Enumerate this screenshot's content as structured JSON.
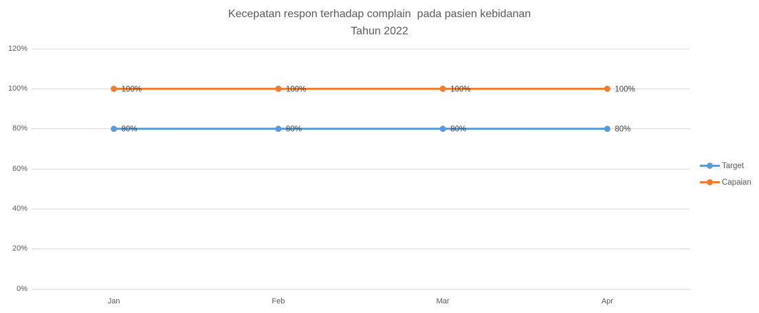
{
  "chart_data": {
    "type": "line",
    "title": "Kecepatan respon terhadap complain  pada pasien kebidanan",
    "subtitle": "Tahun 2022",
    "categories": [
      "Jan",
      "Feb",
      "Mar",
      "Apr"
    ],
    "series": [
      {
        "name": "Target",
        "values": [
          80,
          80,
          80,
          80
        ],
        "point_labels": [
          "80%",
          "80%",
          "80%",
          "80%"
        ],
        "color": "#5B9BD5"
      },
      {
        "name": "Capaian",
        "values": [
          100,
          100,
          100,
          100
        ],
        "point_labels": [
          "100%",
          "100%",
          "100%",
          "100%"
        ],
        "color": "#ED7D31"
      }
    ],
    "xlabel": "",
    "ylabel": "",
    "ylim": [
      0,
      120
    ],
    "ytick_step": 20,
    "ytick_labels": [
      "0%",
      "20%",
      "40%",
      "60%",
      "80%",
      "100%",
      "120%"
    ],
    "grid": true,
    "legend_position": "right"
  },
  "style": {
    "background": "#FFFFFF",
    "gridline_color": "#D9D9D9",
    "axis_text_color": "#595959",
    "title_color": "#595959",
    "data_label_color": "#404040",
    "legend_text_color": "#595959"
  }
}
